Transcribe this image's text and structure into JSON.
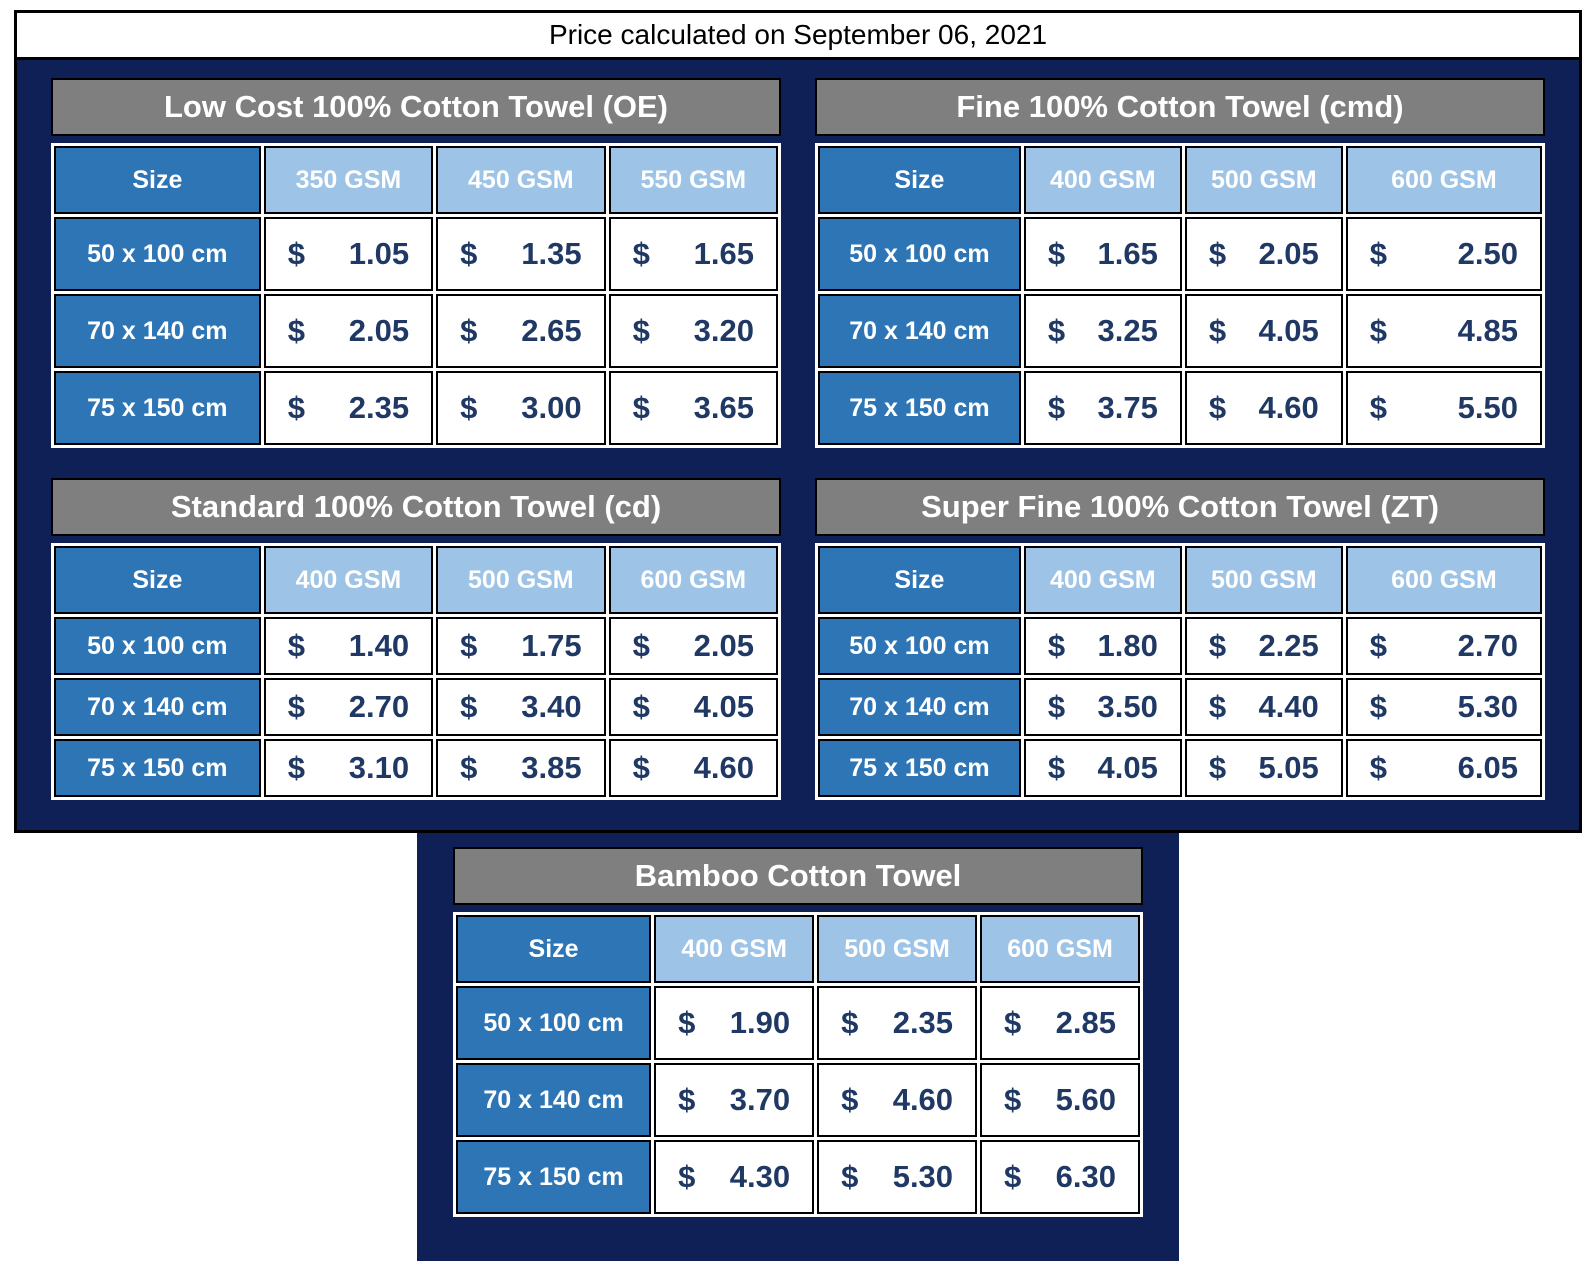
{
  "meta": {
    "date_line": "Price calculated on September 06, 2021"
  },
  "currency": "$",
  "colors": {
    "navy": "#0f2057",
    "title_gray": "#7f7f7f",
    "size_blue": "#2e75b6",
    "gsm_light_blue": "#9dc3e6",
    "price_text": "#1f3864"
  },
  "tables": [
    {
      "id": "low-cost",
      "title": "Low Cost 100% Cotton Towel (OE)",
      "columns": [
        "Size",
        "350 GSM",
        "450 GSM",
        "550 GSM"
      ],
      "rows": [
        {
          "size": "50 x 100 cm",
          "prices": [
            "1.05",
            "1.35",
            "1.65"
          ]
        },
        {
          "size": "70 x 140 cm",
          "prices": [
            "2.05",
            "2.65",
            "3.20"
          ]
        },
        {
          "size": "75 x 150 cm",
          "prices": [
            "2.35",
            "3.00",
            "3.65"
          ]
        }
      ]
    },
    {
      "id": "fine",
      "title": "Fine 100% Cotton Towel (cmd)",
      "columns": [
        "Size",
        "400 GSM",
        "500 GSM",
        "600 GSM"
      ],
      "rows": [
        {
          "size": "50 x 100 cm",
          "prices": [
            "1.65",
            "2.05",
            "2.50"
          ]
        },
        {
          "size": "70 x 140 cm",
          "prices": [
            "3.25",
            "4.05",
            "4.85"
          ]
        },
        {
          "size": "75 x 150 cm",
          "prices": [
            "3.75",
            "4.60",
            "5.50"
          ]
        }
      ]
    },
    {
      "id": "standard",
      "title": "Standard 100% Cotton Towel (cd)",
      "columns": [
        "Size",
        "400 GSM",
        "500 GSM",
        "600 GSM"
      ],
      "rows": [
        {
          "size": "50 x 100 cm",
          "prices": [
            "1.40",
            "1.75",
            "2.05"
          ]
        },
        {
          "size": "70 x 140 cm",
          "prices": [
            "2.70",
            "3.40",
            "4.05"
          ]
        },
        {
          "size": "75 x 150 cm",
          "prices": [
            "3.10",
            "3.85",
            "4.60"
          ]
        }
      ]
    },
    {
      "id": "super-fine",
      "title": "Super Fine 100% Cotton Towel (ZT)",
      "columns": [
        "Size",
        "400 GSM",
        "500 GSM",
        "600 GSM"
      ],
      "rows": [
        {
          "size": "50 x 100 cm",
          "prices": [
            "1.80",
            "2.25",
            "2.70"
          ]
        },
        {
          "size": "70 x 140 cm",
          "prices": [
            "3.50",
            "4.40",
            "5.30"
          ]
        },
        {
          "size": "75 x 150 cm",
          "prices": [
            "4.05",
            "5.05",
            "6.05"
          ]
        }
      ]
    },
    {
      "id": "bamboo",
      "title": "Bamboo Cotton Towel",
      "columns": [
        "Size",
        "400 GSM",
        "500 GSM",
        "600 GSM"
      ],
      "rows": [
        {
          "size": "50 x 100 cm",
          "prices": [
            "1.90",
            "2.35",
            "2.85"
          ]
        },
        {
          "size": "70 x 140 cm",
          "prices": [
            "3.70",
            "4.60",
            "5.60"
          ]
        },
        {
          "size": "75 x 150 cm",
          "prices": [
            "4.30",
            "5.30",
            "6.30"
          ]
        }
      ]
    }
  ]
}
